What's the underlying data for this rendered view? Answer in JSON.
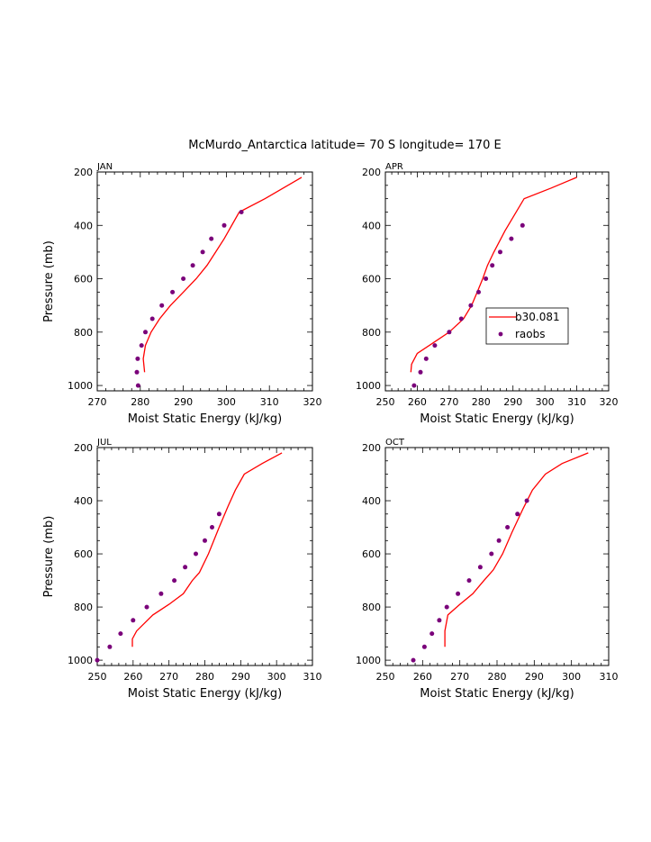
{
  "figure": {
    "title": "McMurdo_Antarctica  latitude= 70 S longitude= 170 E"
  },
  "colors": {
    "model_line": "#ff0000",
    "raobs_marker": "#7a007a",
    "axes": "#000000"
  },
  "legend": {
    "entries": [
      "b30.081",
      "raobs"
    ],
    "placement": "right-middle of APR panel"
  },
  "chart_data": [
    {
      "type": "line",
      "panel": "JAN",
      "xlabel": "Moist Static Energy (kJ/kg)",
      "ylabel": "Pressure (mb)",
      "xlim": [
        270,
        320
      ],
      "ylim": [
        1020,
        200
      ],
      "xticks": [
        270,
        280,
        290,
        300,
        310,
        320
      ],
      "yticks": [
        200,
        400,
        600,
        800,
        1000
      ],
      "series": [
        {
          "name": "b30.081",
          "style": "line",
          "x": [
            281.0,
            280.7,
            281.2,
            282.5,
            284.5,
            287.0,
            290.0,
            293.0,
            295.5,
            297.5,
            299.5,
            303.0,
            309.0,
            317.5
          ],
          "y": [
            950,
            900,
            850,
            800,
            750,
            700,
            650,
            600,
            550,
            500,
            450,
            350,
            300,
            220
          ]
        },
        {
          "name": "raobs",
          "style": "marker",
          "x": [
            279.5,
            279.2,
            279.4,
            280.3,
            281.2,
            282.8,
            285.0,
            287.5,
            290.0,
            292.2,
            294.5,
            296.5,
            299.5,
            303.5
          ],
          "y": [
            1000,
            950,
            900,
            850,
            800,
            750,
            700,
            650,
            600,
            550,
            500,
            450,
            400,
            350
          ]
        }
      ]
    },
    {
      "type": "line",
      "panel": "APR",
      "xlabel": "Moist Static Energy (kJ/kg)",
      "ylabel": "",
      "xlim": [
        250,
        320
      ],
      "ylim": [
        1020,
        200
      ],
      "xticks": [
        250,
        260,
        270,
        280,
        290,
        300,
        310,
        320
      ],
      "yticks": [
        200,
        400,
        600,
        800,
        1000
      ],
      "series": [
        {
          "name": "b30.081",
          "style": "line",
          "x": [
            258.0,
            258.2,
            260.0,
            265.0,
            270.0,
            274.5,
            277.0,
            278.8,
            280.5,
            282.0,
            284.0,
            287.5,
            293.5,
            302.0,
            310.0
          ],
          "y": [
            950,
            920,
            880,
            840,
            800,
            750,
            700,
            650,
            600,
            550,
            500,
            420,
            300,
            260,
            220
          ]
        },
        {
          "name": "raobs",
          "style": "marker",
          "x": [
            259.0,
            261.0,
            262.8,
            265.5,
            270.0,
            273.8,
            276.8,
            279.2,
            281.5,
            283.5,
            286.0,
            289.5,
            293.0
          ],
          "y": [
            1000,
            950,
            900,
            850,
            800,
            750,
            700,
            650,
            600,
            550,
            500,
            450,
            400
          ]
        }
      ]
    },
    {
      "type": "line",
      "panel": "JUL",
      "xlabel": "Moist Static Energy (kJ/kg)",
      "ylabel": "Pressure (mb)",
      "xlim": [
        250,
        310
      ],
      "ylim": [
        1020,
        200
      ],
      "xticks": [
        250,
        260,
        270,
        280,
        290,
        300,
        310
      ],
      "yticks": [
        200,
        400,
        600,
        800,
        1000
      ],
      "series": [
        {
          "name": "b30.081",
          "style": "line",
          "x": [
            259.8,
            259.8,
            261.0,
            265.5,
            270.0,
            274.0,
            276.5,
            278.5,
            281.0,
            284.0,
            286.5,
            288.5,
            291.0,
            296.0,
            301.5
          ],
          "y": [
            950,
            920,
            890,
            830,
            790,
            750,
            700,
            670,
            600,
            500,
            420,
            360,
            300,
            260,
            220
          ]
        },
        {
          "name": "raobs",
          "style": "marker",
          "x": [
            250.0,
            253.5,
            256.5,
            260.0,
            263.8,
            267.8,
            271.5,
            274.5,
            277.5,
            280.0,
            282.0,
            284.0
          ],
          "y": [
            1000,
            950,
            900,
            850,
            800,
            750,
            700,
            650,
            600,
            550,
            500,
            450
          ]
        }
      ]
    },
    {
      "type": "line",
      "panel": "OCT",
      "xlabel": "Moist Static Energy (kJ/kg)",
      "ylabel": "",
      "xlim": [
        250,
        310
      ],
      "ylim": [
        1020,
        200
      ],
      "xticks": [
        250,
        260,
        270,
        280,
        290,
        300,
        310
      ],
      "yticks": [
        200,
        400,
        600,
        800,
        1000
      ],
      "series": [
        {
          "name": "b30.081",
          "style": "line",
          "x": [
            266.0,
            266.0,
            266.8,
            270.0,
            273.5,
            276.5,
            279.0,
            281.5,
            284.0,
            287.0,
            289.5,
            293.0,
            297.5,
            304.5
          ],
          "y": [
            950,
            890,
            830,
            790,
            750,
            700,
            660,
            600,
            520,
            430,
            360,
            300,
            260,
            220
          ]
        },
        {
          "name": "raobs",
          "style": "marker",
          "x": [
            257.5,
            260.5,
            262.5,
            264.5,
            266.5,
            269.5,
            272.5,
            275.5,
            278.5,
            280.5,
            282.8,
            285.5,
            288.0
          ],
          "y": [
            1000,
            950,
            900,
            850,
            800,
            750,
            700,
            650,
            600,
            550,
            500,
            450,
            400
          ]
        }
      ]
    }
  ]
}
